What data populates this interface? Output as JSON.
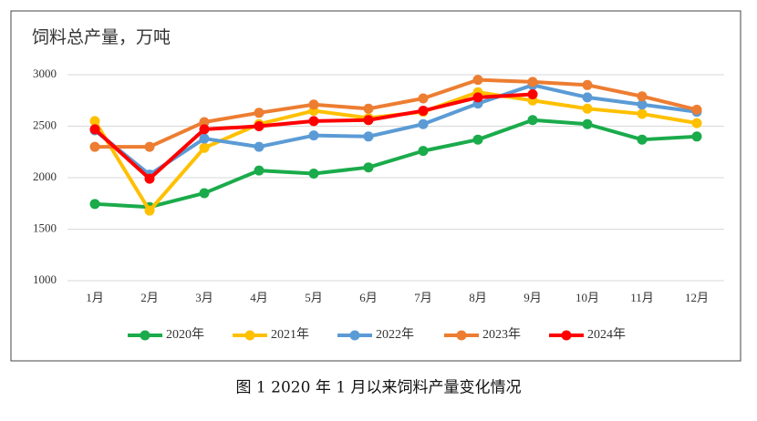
{
  "chart_data": {
    "type": "line",
    "title": "饲料总产量，万吨",
    "caption": "图 1   2020 年 1 月以来饲料产量变化情况",
    "categories": [
      "1月",
      "2月",
      "3月",
      "4月",
      "5月",
      "6月",
      "7月",
      "8月",
      "9月",
      "10月",
      "11月",
      "12月"
    ],
    "ylim": [
      1000,
      3000
    ],
    "yticks": [
      1000,
      1500,
      2000,
      2500,
      3000
    ],
    "grid": true,
    "legend": "bottom",
    "series": [
      {
        "name": "2020年",
        "color": "#1aab4b",
        "values": [
          1745,
          1715,
          1850,
          2070,
          2040,
          2100,
          2260,
          2370,
          2560,
          2520,
          2370,
          2400
        ]
      },
      {
        "name": "2021年",
        "color": "#ffc000",
        "values": [
          2550,
          1680,
          2290,
          2520,
          2650,
          2580,
          2640,
          2830,
          2750,
          2670,
          2620,
          2530
        ]
      },
      {
        "name": "2022年",
        "color": "#5b9bd5",
        "values": [
          2460,
          2030,
          2380,
          2300,
          2410,
          2400,
          2520,
          2720,
          2900,
          2780,
          2710,
          2640
        ]
      },
      {
        "name": "2023年",
        "color": "#ed7d31",
        "values": [
          2300,
          2300,
          2540,
          2630,
          2710,
          2670,
          2770,
          2950,
          2930,
          2900,
          2790,
          2660
        ]
      },
      {
        "name": "2024年",
        "color": "#ff0000",
        "values": [
          2470,
          1990,
          2470,
          2500,
          2550,
          2560,
          2650,
          2780,
          2810,
          null,
          null,
          null
        ]
      }
    ]
  }
}
